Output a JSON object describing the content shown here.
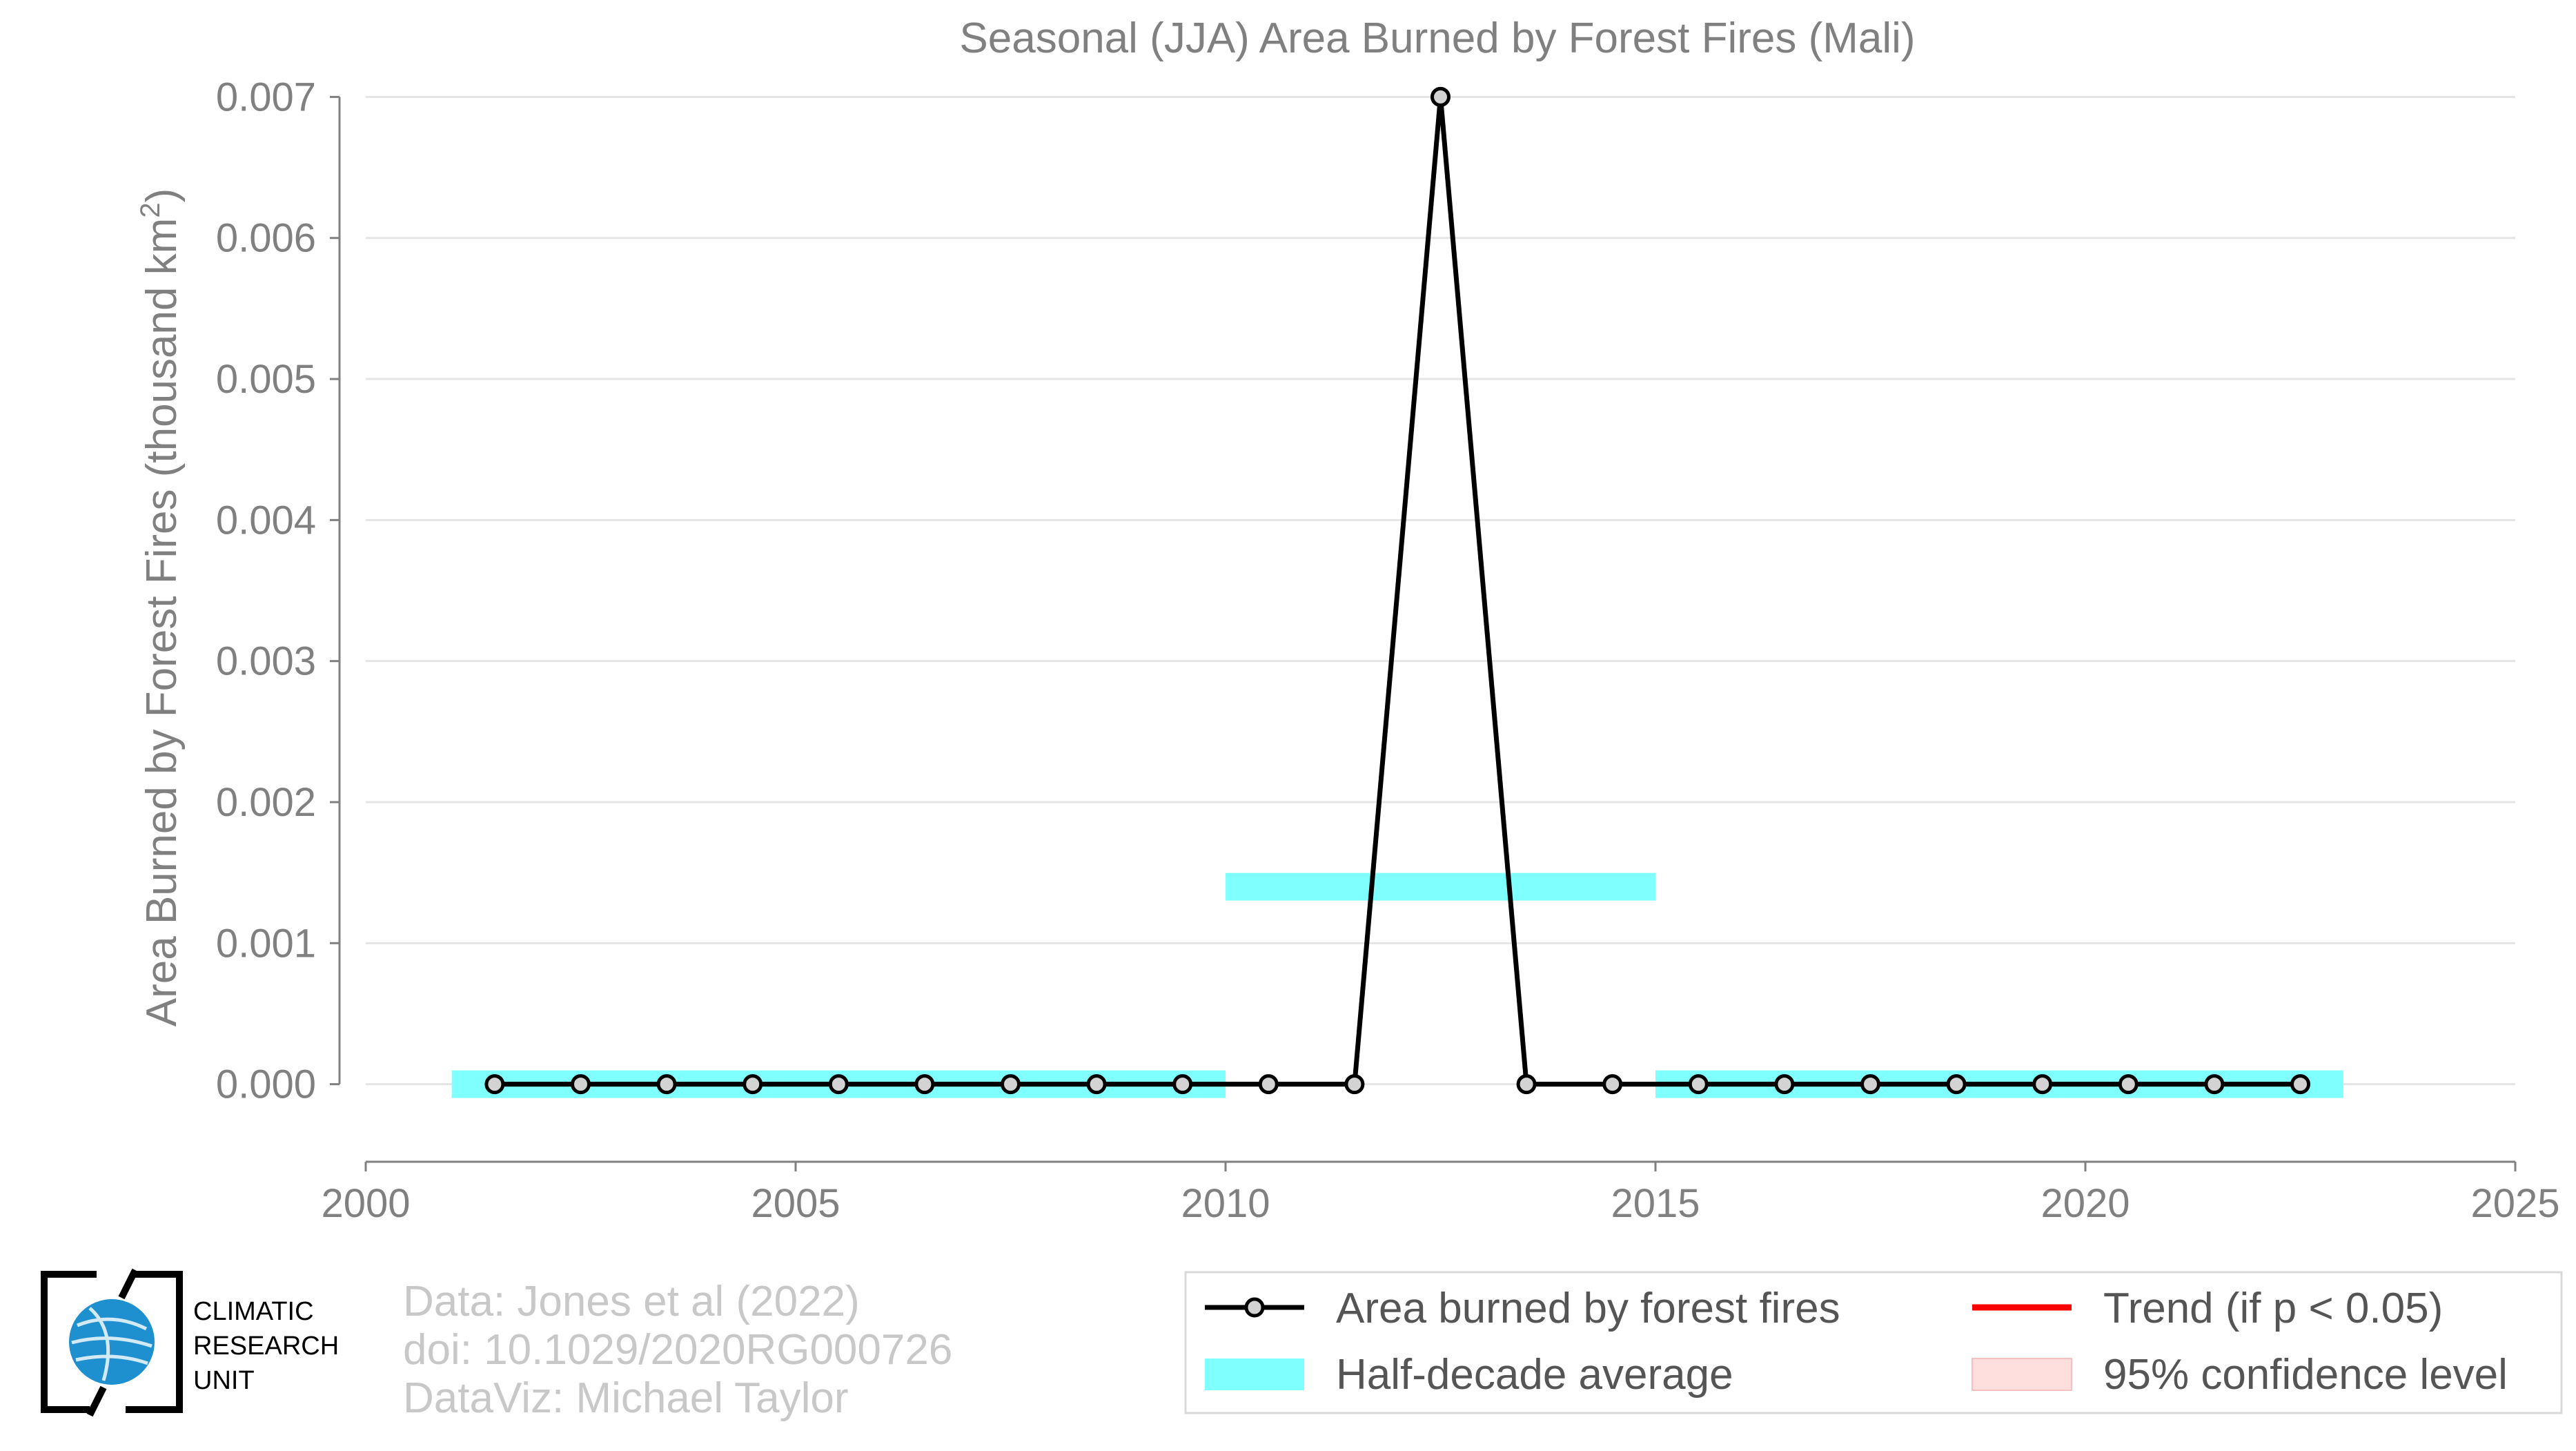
{
  "chart_data": {
    "type": "line",
    "title": "Seasonal (JJA) Area Burned by Forest Fires (Mali)",
    "ylabel": "Area Burned by Forest Fires (thousand km",
    "ylabel_sup": "2",
    "ylabel_end": ")",
    "xlabel": "",
    "xlim": [
      2000,
      2025
    ],
    "ylim": [
      -0.00055,
      0.0071
    ],
    "x_ticks": [
      "2000",
      "2005",
      "2010",
      "2015",
      "2020",
      "2025"
    ],
    "y_ticks": [
      "0.000",
      "0.001",
      "0.002",
      "0.003",
      "0.004",
      "0.005",
      "0.006",
      "0.007"
    ],
    "grid": true,
    "legend_position": "bottom-right",
    "series": [
      {
        "name": "Area burned by forest fires",
        "color": "#000000",
        "marker_fill": "#d3d3d3",
        "x": [
          2001.5,
          2002.5,
          2003.5,
          2004.5,
          2005.5,
          2006.5,
          2007.5,
          2008.5,
          2009.5,
          2010.5,
          2011.5,
          2012.5,
          2013.5,
          2014.5,
          2015.5,
          2016.5,
          2017.5,
          2018.5,
          2019.5,
          2020.5,
          2021.5,
          2022.5
        ],
        "y": [
          0,
          0,
          0,
          0,
          0,
          0,
          0,
          0,
          0,
          0,
          0,
          0.007,
          0,
          0,
          0,
          0,
          0,
          0,
          0,
          0,
          0,
          0
        ]
      }
    ],
    "half_decade_average": {
      "name": "Half-decade average",
      "color": "#80ffff",
      "segments": [
        {
          "x0": 2001,
          "x1": 2010,
          "y": 0
        },
        {
          "x0": 2010,
          "x1": 2015,
          "y": 0.0014
        },
        {
          "x0": 2015,
          "x1": 2023,
          "y": 0
        }
      ]
    },
    "legend": [
      {
        "label": "Area burned by forest fires",
        "kind": "line-marker",
        "color": "#000000"
      },
      {
        "label": "Trend (if p < 0.05)",
        "kind": "line",
        "color": "#ff0000"
      },
      {
        "label": "Half-decade average",
        "kind": "patch",
        "color": "#80ffff"
      },
      {
        "label": "95% confidence level",
        "kind": "patch",
        "color": "#ffdede"
      }
    ]
  },
  "credits": {
    "line1": "Data: Jones et al (2022)",
    "line2": "doi: 10.1029/2020RG000726",
    "line3": "DataViz: Michael Taylor"
  },
  "logo": {
    "line1": "CLIMATIC",
    "line2": "RESEARCH",
    "line3": "UNIT",
    "globe_color": "#1e90d0"
  }
}
